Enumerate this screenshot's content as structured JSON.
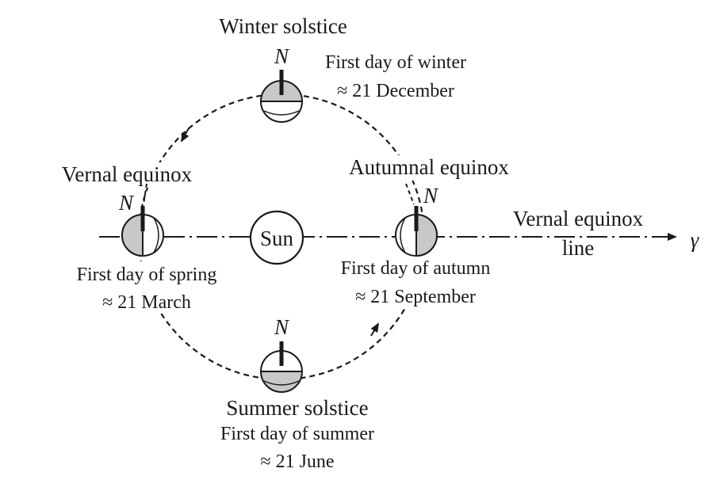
{
  "winter": {
    "title": "Winter solstice",
    "line1": "First day of winter",
    "line2": "≈ 21 December",
    "north": "N"
  },
  "vernal": {
    "title": "Vernal equinox",
    "line1": "First day of spring",
    "line2": "≈ 21 March",
    "north": "N"
  },
  "autumnal": {
    "title": "Autumnal equinox",
    "line1": "First day of autumn",
    "line2": "≈ 21 September",
    "north": "N"
  },
  "summer": {
    "title": "Summer solstice",
    "line1": "First day of summer",
    "line2": "≈ 21 June",
    "north": "N"
  },
  "sun": {
    "label": "Sun"
  },
  "equinox_line": {
    "line1": "Vernal equinox",
    "line2": "line",
    "symbol": "γ"
  },
  "colors": {
    "stroke": "#1a1a1a",
    "shade": "#c8c8c8",
    "background": "#ffffff"
  }
}
